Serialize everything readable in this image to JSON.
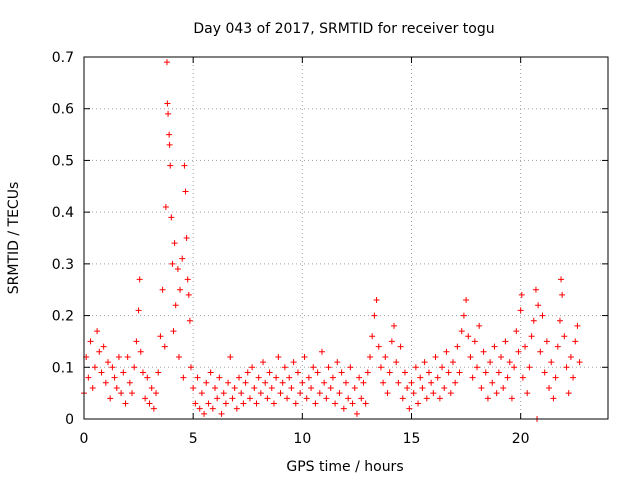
{
  "chart_data": {
    "type": "scatter",
    "title": "Day 043 of 2017, SRMTID for receiver togu",
    "xlabel": "GPS time / hours",
    "ylabel": "SRMTID / TECUs",
    "xlim": [
      0,
      24
    ],
    "ylim": [
      0,
      0.7
    ],
    "x_ticks": [
      0,
      5,
      10,
      15,
      20
    ],
    "x_tick_labels": [
      "0",
      "5",
      "10",
      "15",
      "20"
    ],
    "y_ticks": [
      0,
      0.1,
      0.2,
      0.3,
      0.4,
      0.5,
      0.6,
      0.7
    ],
    "y_tick_labels": [
      "0",
      "0.1",
      "0.2",
      "0.3",
      "0.4",
      "0.5",
      "0.6",
      "0.7"
    ],
    "grid": true,
    "marker": "+",
    "series_color": "#ff0000",
    "series": [
      {
        "name": "SRMTID",
        "points": [
          [
            0.0,
            0.05
          ],
          [
            0.1,
            0.12
          ],
          [
            0.2,
            0.08
          ],
          [
            0.3,
            0.15
          ],
          [
            0.4,
            0.06
          ],
          [
            0.5,
            0.1
          ],
          [
            0.6,
            0.17
          ],
          [
            0.7,
            0.13
          ],
          [
            0.8,
            0.09
          ],
          [
            0.9,
            0.14
          ],
          [
            1.0,
            0.07
          ],
          [
            1.1,
            0.11
          ],
          [
            1.2,
            0.04
          ],
          [
            1.3,
            0.1
          ],
          [
            1.4,
            0.08
          ],
          [
            1.5,
            0.06
          ],
          [
            1.6,
            0.12
          ],
          [
            1.7,
            0.05
          ],
          [
            1.8,
            0.09
          ],
          [
            1.9,
            0.03
          ],
          [
            2.0,
            0.12
          ],
          [
            2.1,
            0.07
          ],
          [
            2.2,
            0.05
          ],
          [
            2.3,
            0.1
          ],
          [
            2.4,
            0.15
          ],
          [
            2.5,
            0.21
          ],
          [
            2.55,
            0.27
          ],
          [
            2.6,
            0.13
          ],
          [
            2.7,
            0.09
          ],
          [
            2.8,
            0.04
          ],
          [
            2.9,
            0.08
          ],
          [
            3.0,
            0.03
          ],
          [
            3.1,
            0.06
          ],
          [
            3.2,
            0.02
          ],
          [
            3.3,
            0.05
          ],
          [
            3.4,
            0.09
          ],
          [
            3.5,
            0.16
          ],
          [
            3.6,
            0.25
          ],
          [
            3.7,
            0.14
          ],
          [
            3.75,
            0.41
          ],
          [
            3.8,
            0.69
          ],
          [
            3.82,
            0.61
          ],
          [
            3.85,
            0.59
          ],
          [
            3.9,
            0.55
          ],
          [
            3.92,
            0.53
          ],
          [
            3.95,
            0.49
          ],
          [
            4.0,
            0.39
          ],
          [
            4.05,
            0.3
          ],
          [
            4.1,
            0.17
          ],
          [
            4.15,
            0.34
          ],
          [
            4.2,
            0.22
          ],
          [
            4.3,
            0.29
          ],
          [
            4.35,
            0.12
          ],
          [
            4.4,
            0.25
          ],
          [
            4.5,
            0.31
          ],
          [
            4.55,
            0.08
          ],
          [
            4.6,
            0.49
          ],
          [
            4.65,
            0.44
          ],
          [
            4.7,
            0.35
          ],
          [
            4.75,
            0.27
          ],
          [
            4.8,
            0.24
          ],
          [
            4.85,
            0.19
          ],
          [
            4.9,
            0.1
          ],
          [
            5.0,
            0.06
          ],
          [
            5.1,
            0.03
          ],
          [
            5.2,
            0.08
          ],
          [
            5.3,
            0.02
          ],
          [
            5.4,
            0.05
          ],
          [
            5.5,
            0.01
          ],
          [
            5.6,
            0.07
          ],
          [
            5.7,
            0.03
          ],
          [
            5.8,
            0.09
          ],
          [
            5.9,
            0.02
          ],
          [
            6.0,
            0.06
          ],
          [
            6.1,
            0.04
          ],
          [
            6.2,
            0.08
          ],
          [
            6.3,
            0.01
          ],
          [
            6.4,
            0.05
          ],
          [
            6.5,
            0.03
          ],
          [
            6.6,
            0.07
          ],
          [
            6.7,
            0.12
          ],
          [
            6.8,
            0.04
          ],
          [
            6.9,
            0.06
          ],
          [
            7.0,
            0.02
          ],
          [
            7.1,
            0.08
          ],
          [
            7.2,
            0.05
          ],
          [
            7.3,
            0.03
          ],
          [
            7.4,
            0.07
          ],
          [
            7.5,
            0.09
          ],
          [
            7.6,
            0.04
          ],
          [
            7.7,
            0.1
          ],
          [
            7.8,
            0.06
          ],
          [
            7.9,
            0.03
          ],
          [
            8.0,
            0.08
          ],
          [
            8.1,
            0.05
          ],
          [
            8.2,
            0.11
          ],
          [
            8.3,
            0.07
          ],
          [
            8.4,
            0.04
          ],
          [
            8.5,
            0.09
          ],
          [
            8.6,
            0.06
          ],
          [
            8.7,
            0.03
          ],
          [
            8.8,
            0.08
          ],
          [
            8.9,
            0.12
          ],
          [
            9.0,
            0.05
          ],
          [
            9.1,
            0.07
          ],
          [
            9.2,
            0.1
          ],
          [
            9.3,
            0.04
          ],
          [
            9.4,
            0.08
          ],
          [
            9.5,
            0.06
          ],
          [
            9.6,
            0.11
          ],
          [
            9.7,
            0.03
          ],
          [
            9.8,
            0.09
          ],
          [
            9.9,
            0.05
          ],
          [
            10.0,
            0.07
          ],
          [
            10.1,
            0.12
          ],
          [
            10.2,
            0.04
          ],
          [
            10.3,
            0.08
          ],
          [
            10.4,
            0.06
          ],
          [
            10.5,
            0.1
          ],
          [
            10.6,
            0.03
          ],
          [
            10.7,
            0.09
          ],
          [
            10.8,
            0.05
          ],
          [
            10.9,
            0.13
          ],
          [
            11.0,
            0.07
          ],
          [
            11.1,
            0.04
          ],
          [
            11.2,
            0.1
          ],
          [
            11.3,
            0.06
          ],
          [
            11.4,
            0.08
          ],
          [
            11.5,
            0.03
          ],
          [
            11.6,
            0.11
          ],
          [
            11.7,
            0.05
          ],
          [
            11.8,
            0.09
          ],
          [
            11.9,
            0.02
          ],
          [
            12.0,
            0.07
          ],
          [
            12.1,
            0.04
          ],
          [
            12.2,
            0.1
          ],
          [
            12.3,
            0.03
          ],
          [
            12.4,
            0.06
          ],
          [
            12.5,
            0.01
          ],
          [
            12.6,
            0.08
          ],
          [
            12.7,
            0.04
          ],
          [
            12.8,
            0.07
          ],
          [
            12.9,
            0.03
          ],
          [
            13.0,
            0.09
          ],
          [
            13.1,
            0.12
          ],
          [
            13.2,
            0.16
          ],
          [
            13.3,
            0.2
          ],
          [
            13.4,
            0.23
          ],
          [
            13.5,
            0.14
          ],
          [
            13.6,
            0.1
          ],
          [
            13.7,
            0.07
          ],
          [
            13.8,
            0.12
          ],
          [
            13.9,
            0.05
          ],
          [
            14.0,
            0.09
          ],
          [
            14.1,
            0.15
          ],
          [
            14.2,
            0.18
          ],
          [
            14.3,
            0.11
          ],
          [
            14.4,
            0.07
          ],
          [
            14.5,
            0.14
          ],
          [
            14.6,
            0.04
          ],
          [
            14.7,
            0.09
          ],
          [
            14.8,
            0.06
          ],
          [
            14.9,
            0.02
          ],
          [
            15.0,
            0.07
          ],
          [
            15.1,
            0.05
          ],
          [
            15.2,
            0.1
          ],
          [
            15.3,
            0.03
          ],
          [
            15.4,
            0.08
          ],
          [
            15.5,
            0.06
          ],
          [
            15.6,
            0.11
          ],
          [
            15.7,
            0.04
          ],
          [
            15.8,
            0.09
          ],
          [
            15.9,
            0.07
          ],
          [
            16.0,
            0.05
          ],
          [
            16.1,
            0.12
          ],
          [
            16.2,
            0.08
          ],
          [
            16.3,
            0.04
          ],
          [
            16.4,
            0.1
          ],
          [
            16.5,
            0.06
          ],
          [
            16.6,
            0.13
          ],
          [
            16.7,
            0.09
          ],
          [
            16.8,
            0.05
          ],
          [
            16.9,
            0.11
          ],
          [
            17.0,
            0.07
          ],
          [
            17.1,
            0.14
          ],
          [
            17.2,
            0.09
          ],
          [
            17.3,
            0.17
          ],
          [
            17.4,
            0.2
          ],
          [
            17.5,
            0.23
          ],
          [
            17.6,
            0.16
          ],
          [
            17.7,
            0.12
          ],
          [
            17.8,
            0.08
          ],
          [
            17.9,
            0.15
          ],
          [
            18.0,
            0.1
          ],
          [
            18.1,
            0.18
          ],
          [
            18.2,
            0.06
          ],
          [
            18.3,
            0.13
          ],
          [
            18.4,
            0.09
          ],
          [
            18.5,
            0.04
          ],
          [
            18.6,
            0.11
          ],
          [
            18.7,
            0.07
          ],
          [
            18.8,
            0.14
          ],
          [
            18.9,
            0.05
          ],
          [
            19.0,
            0.09
          ],
          [
            19.1,
            0.12
          ],
          [
            19.2,
            0.06
          ],
          [
            19.3,
            0.15
          ],
          [
            19.4,
            0.08
          ],
          [
            19.5,
            0.11
          ],
          [
            19.6,
            0.04
          ],
          [
            19.7,
            0.1
          ],
          [
            19.8,
            0.17
          ],
          [
            19.9,
            0.13
          ],
          [
            20.0,
            0.21
          ],
          [
            20.05,
            0.24
          ],
          [
            20.1,
            0.08
          ],
          [
            20.2,
            0.14
          ],
          [
            20.3,
            0.05
          ],
          [
            20.4,
            0.1
          ],
          [
            20.5,
            0.16
          ],
          [
            20.6,
            0.19
          ],
          [
            20.7,
            0.25
          ],
          [
            20.75,
            0.0
          ],
          [
            20.8,
            0.22
          ],
          [
            20.9,
            0.13
          ],
          [
            21.0,
            0.2
          ],
          [
            21.1,
            0.09
          ],
          [
            21.2,
            0.15
          ],
          [
            21.3,
            0.06
          ],
          [
            21.4,
            0.11
          ],
          [
            21.5,
            0.04
          ],
          [
            21.6,
            0.08
          ],
          [
            21.7,
            0.14
          ],
          [
            21.8,
            0.19
          ],
          [
            21.85,
            0.27
          ],
          [
            21.9,
            0.24
          ],
          [
            22.0,
            0.16
          ],
          [
            22.1,
            0.1
          ],
          [
            22.2,
            0.05
          ],
          [
            22.3,
            0.12
          ],
          [
            22.4,
            0.08
          ],
          [
            22.5,
            0.15
          ],
          [
            22.6,
            0.18
          ],
          [
            22.7,
            0.11
          ]
        ]
      }
    ]
  }
}
